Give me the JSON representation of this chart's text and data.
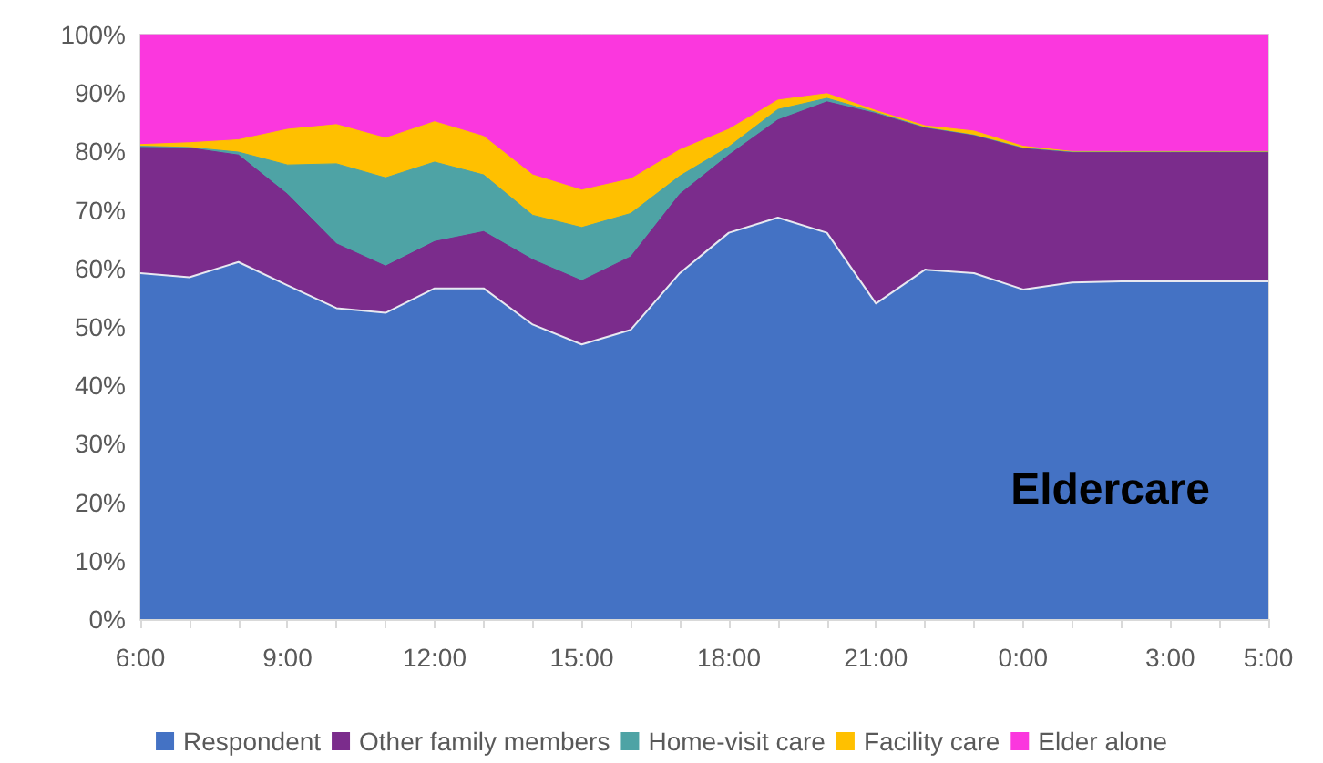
{
  "chart_data": {
    "type": "area",
    "stacked": true,
    "grid": false,
    "legend": "bottom",
    "annotations": [
      "Eldercare"
    ],
    "categories": [
      "6:00",
      null,
      null,
      "9:00",
      null,
      null,
      "12:00",
      null,
      null,
      "15:00",
      null,
      null,
      "18:00",
      null,
      null,
      "21:00",
      null,
      null,
      "0:00",
      null,
      null,
      "3:00",
      null,
      "5:00"
    ],
    "ylim": [
      0,
      100
    ],
    "yticks": [
      {
        "value": 0,
        "label": "0%"
      },
      {
        "value": 10,
        "label": "10%"
      },
      {
        "value": 20,
        "label": "20%"
      },
      {
        "value": 30,
        "label": "30%"
      },
      {
        "value": 40,
        "label": "40%"
      },
      {
        "value": 50,
        "label": "50%"
      },
      {
        "value": 60,
        "label": "60%"
      },
      {
        "value": 70,
        "label": "70%"
      },
      {
        "value": 80,
        "label": "80%"
      },
      {
        "value": 90,
        "label": "90%"
      },
      {
        "value": 100,
        "label": "100%"
      }
    ],
    "series": [
      {
        "name": "Respondent",
        "color": "#4472c4",
        "values": [
          59.2,
          58.5,
          61.1,
          57.1,
          53.2,
          52.4,
          56.6,
          56.6,
          50.4,
          47.0,
          49.5,
          59.2,
          66.1,
          68.7,
          66.1,
          54.0,
          59.8,
          59.2,
          56.4,
          57.6,
          57.8,
          57.8,
          57.8,
          57.8
        ]
      },
      {
        "name": "Other family members",
        "color": "#7b2c8c",
        "values": [
          21.5,
          22.1,
          18.3,
          15.6,
          11.0,
          8.0,
          8.0,
          9.7,
          11.1,
          10.9,
          12.5,
          13.5,
          13.3,
          16.7,
          22.4,
          32.5,
          24.2,
          23.5,
          24.1,
          22.2,
          22.0,
          22.0,
          22.0,
          22.0
        ]
      },
      {
        "name": "Home-visit care",
        "color": "#4ea3a5",
        "values": [
          0.2,
          0.1,
          0.5,
          5.0,
          13.7,
          15.1,
          13.6,
          9.7,
          7.6,
          9.1,
          7.4,
          3.1,
          1.4,
          1.8,
          0.6,
          0.2,
          0.1,
          0.1,
          0.1,
          0.1,
          0.1,
          0.1,
          0.1,
          0.1
        ]
      },
      {
        "name": "Facility care",
        "color": "#ffc000",
        "values": [
          0.3,
          0.8,
          2.1,
          6.1,
          6.7,
          6.8,
          6.9,
          6.6,
          6.9,
          6.4,
          5.9,
          4.5,
          3.0,
          1.6,
          0.8,
          0.3,
          0.3,
          0.7,
          0.3,
          0.1,
          0.1,
          0.1,
          0.1,
          0.1
        ]
      },
      {
        "name": "Elder alone",
        "color": "#fb37de",
        "values": [
          18.8,
          18.5,
          18.0,
          16.2,
          15.4,
          17.7,
          14.9,
          17.4,
          24.0,
          26.6,
          24.7,
          19.7,
          16.2,
          11.2,
          10.1,
          13.0,
          15.6,
          16.5,
          19.1,
          20.0,
          20.0,
          20.0,
          20.0,
          20.0
        ]
      }
    ]
  }
}
